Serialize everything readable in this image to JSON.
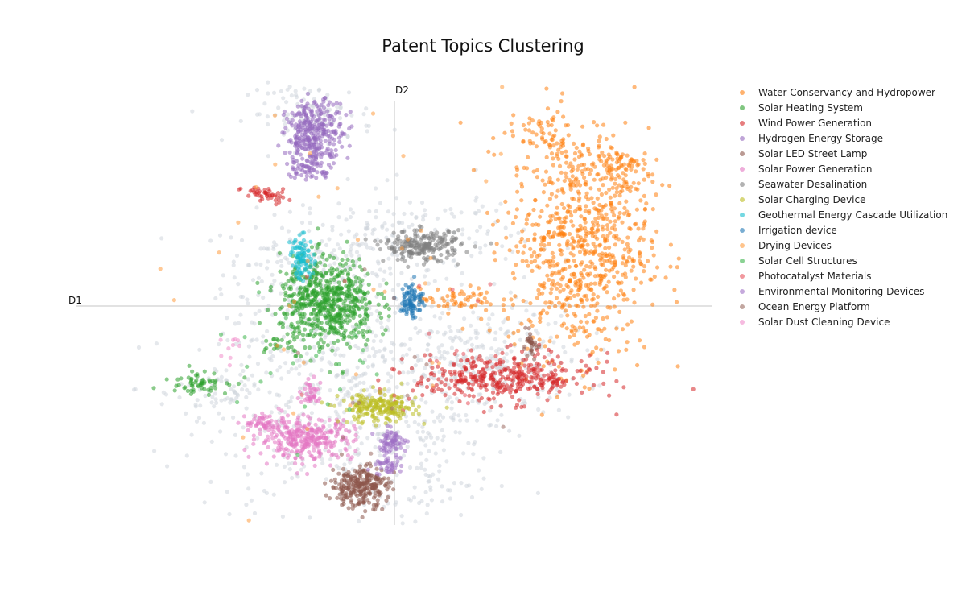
{
  "chart_data": {
    "type": "scatter",
    "title": "Patent Topics Clustering",
    "xlabel": "D1",
    "ylabel": "D2",
    "xlim": [
      -10,
      10
    ],
    "ylim": [
      -7.5,
      7.5
    ],
    "grid": false,
    "zero_lines": true,
    "legend_position": "top-right",
    "point_opacity": 0.55,
    "background_series": {
      "color": "#cfd6dc",
      "clusters": [
        {
          "cx": -2.8,
          "cy": 1.1,
          "sx": 1.3,
          "sy": 1.0,
          "n": 220
        },
        {
          "cx": -1.2,
          "cy": -3.2,
          "sx": 2.4,
          "sy": 1.8,
          "n": 520
        },
        {
          "cx": 2.8,
          "cy": -1.8,
          "sx": 1.6,
          "sy": 0.9,
          "n": 260
        },
        {
          "cx": -2.6,
          "cy": 6.4,
          "sx": 1.0,
          "sy": 0.5,
          "n": 90
        },
        {
          "cx": 0.5,
          "cy": 2.2,
          "sx": 1.8,
          "sy": 0.9,
          "n": 160
        },
        {
          "cx": -5.2,
          "cy": -2.9,
          "sx": 0.8,
          "sy": 0.6,
          "n": 70
        },
        {
          "cx": 1.0,
          "cy": -5.5,
          "sx": 0.8,
          "sy": 1.2,
          "n": 60
        }
      ]
    },
    "series": [
      {
        "name": "Water Conservancy and Hydropower",
        "color": "#ff7f0e",
        "clusters": [
          {
            "cx": 5.8,
            "cy": 2.1,
            "sx": 1.1,
            "sy": 1.9,
            "n": 780
          },
          {
            "cx": 7.0,
            "cy": 4.5,
            "sx": 0.5,
            "sy": 0.5,
            "n": 90
          },
          {
            "cx": 4.6,
            "cy": 5.8,
            "sx": 0.5,
            "sy": 0.4,
            "n": 50
          },
          {
            "cx": 2.0,
            "cy": 0.2,
            "sx": 0.6,
            "sy": 0.2,
            "n": 60
          }
        ]
      },
      {
        "name": "Solar Heating System",
        "color": "#2ca02c",
        "clusters": [
          {
            "cx": -2.1,
            "cy": 0.1,
            "sx": 0.75,
            "sy": 0.75,
            "n": 620
          },
          {
            "cx": -6.2,
            "cy": -2.5,
            "sx": 0.5,
            "sy": 0.2,
            "n": 60
          },
          {
            "cx": -3.8,
            "cy": -1.3,
            "sx": 0.2,
            "sy": 0.1,
            "n": 18
          }
        ]
      },
      {
        "name": "Wind Power Generation",
        "color": "#d62728",
        "clusters": [
          {
            "cx": 3.4,
            "cy": -2.4,
            "sx": 1.4,
            "sy": 0.4,
            "n": 380
          },
          {
            "cx": -4.1,
            "cy": 3.7,
            "sx": 0.35,
            "sy": 0.15,
            "n": 45
          }
        ]
      },
      {
        "name": "Hydrogen Energy Storage",
        "color": "#9467bd",
        "clusters": [
          {
            "cx": -2.5,
            "cy": 5.7,
            "sx": 0.45,
            "sy": 0.55,
            "n": 330
          },
          {
            "cx": -2.8,
            "cy": 4.6,
            "sx": 0.3,
            "sy": 0.2,
            "n": 40
          }
        ]
      },
      {
        "name": "Solar LED Street Lamp",
        "color": "#8c564b",
        "clusters": [
          {
            "cx": -1.1,
            "cy": -6.0,
            "sx": 0.45,
            "sy": 0.35,
            "n": 260
          },
          {
            "cx": 4.3,
            "cy": -1.3,
            "sx": 0.12,
            "sy": 0.2,
            "n": 30
          }
        ]
      },
      {
        "name": "Solar Power Generation",
        "color": "#e377c2",
        "clusters": [
          {
            "cx": -2.8,
            "cy": -4.4,
            "sx": 0.75,
            "sy": 0.35,
            "n": 300
          },
          {
            "cx": -2.6,
            "cy": -2.9,
            "sx": 0.2,
            "sy": 0.2,
            "n": 40
          },
          {
            "cx": -4.1,
            "cy": -3.9,
            "sx": 0.3,
            "sy": 0.15,
            "n": 50
          }
        ]
      },
      {
        "name": "Seawater Desalination",
        "color": "#7f7f7f",
        "clusters": [
          {
            "cx": 0.9,
            "cy": 2.0,
            "sx": 0.6,
            "sy": 0.25,
            "n": 220
          }
        ]
      },
      {
        "name": "Solar Charging Device",
        "color": "#bcbd22",
        "clusters": [
          {
            "cx": -0.5,
            "cy": -3.4,
            "sx": 0.6,
            "sy": 0.25,
            "n": 210
          }
        ]
      },
      {
        "name": "Geothermal Energy Cascade Utilization",
        "color": "#17becf",
        "clusters": [
          {
            "cx": -2.9,
            "cy": 1.6,
            "sx": 0.18,
            "sy": 0.35,
            "n": 90
          }
        ]
      },
      {
        "name": "Irrigation device",
        "color": "#1f77b4",
        "clusters": [
          {
            "cx": 0.55,
            "cy": 0.2,
            "sx": 0.18,
            "sy": 0.3,
            "n": 90
          }
        ]
      },
      {
        "name": "Drying Devices",
        "color": "#ff9c3f",
        "clusters": [
          {
            "cx": -1.0,
            "cy": 0.0,
            "sx": 3.0,
            "sy": 3.0,
            "n": 40
          }
        ]
      },
      {
        "name": "Solar Cell Structures",
        "color": "#3cb44b",
        "clusters": [
          {
            "cx": -2.5,
            "cy": -2.0,
            "sx": 1.6,
            "sy": 1.0,
            "n": 25
          }
        ]
      },
      {
        "name": "Photocatalyst Materials",
        "color": "#e8535e",
        "clusters": [
          {
            "cx": 1.0,
            "cy": -1.5,
            "sx": 2.0,
            "sy": 1.5,
            "n": 15
          }
        ]
      },
      {
        "name": "Environmental Monitoring Devices",
        "color": "#9f6fc4",
        "clusters": [
          {
            "cx": -0.1,
            "cy": -4.5,
            "sx": 0.25,
            "sy": 0.2,
            "n": 70
          },
          {
            "cx": -0.2,
            "cy": -5.3,
            "sx": 0.2,
            "sy": 0.15,
            "n": 40
          }
        ]
      },
      {
        "name": "Ocean Energy Platform",
        "color": "#9a6a60",
        "clusters": [
          {
            "cx": -1.0,
            "cy": -2.0,
            "sx": 2.0,
            "sy": 2.0,
            "n": 12
          }
        ]
      },
      {
        "name": "Solar Dust Cleaning Device",
        "color": "#f08ecb",
        "clusters": [
          {
            "cx": -5.2,
            "cy": -1.4,
            "sx": 0.3,
            "sy": 0.2,
            "n": 10
          }
        ]
      }
    ]
  }
}
